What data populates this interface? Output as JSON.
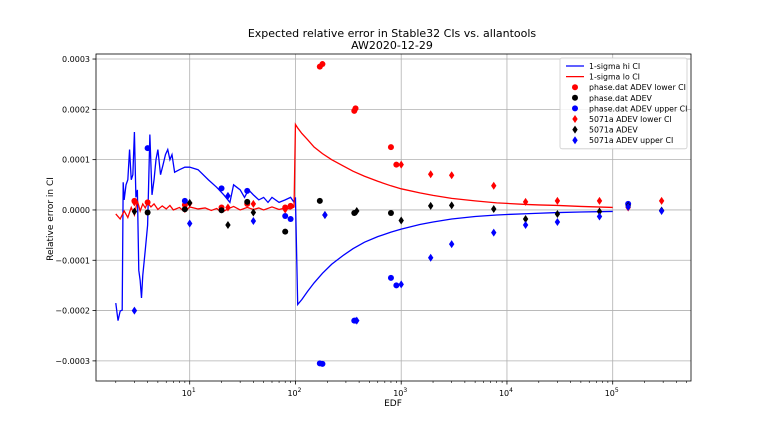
{
  "chart_data": {
    "type": "scatter",
    "title": "Expected relative error in Stable32 CIs vs. allantools",
    "subtitle": "AW2020-12-29",
    "xlabel": "EDF",
    "ylabel": "Relative error in CI",
    "xscale": "log",
    "xlim": [
      1.3,
      550000
    ],
    "ylim": [
      -0.00034,
      0.00031
    ],
    "grid": true,
    "legend_position": "top-right",
    "x_ticks": [
      {
        "value": 10,
        "base": "10",
        "exp": "1"
      },
      {
        "value": 100,
        "base": "10",
        "exp": "2"
      },
      {
        "value": 1000,
        "base": "10",
        "exp": "3"
      },
      {
        "value": 10000,
        "base": "10",
        "exp": "4"
      },
      {
        "value": 100000,
        "base": "10",
        "exp": "5"
      }
    ],
    "y_ticks": [
      {
        "value": 0.0003,
        "label": "0.0003"
      },
      {
        "value": 0.0002,
        "label": "0.0002"
      },
      {
        "value": 0.0001,
        "label": "0.0001"
      },
      {
        "value": 0.0,
        "label": "0.0000"
      },
      {
        "value": -0.0001,
        "label": "−0.0001"
      },
      {
        "value": -0.0002,
        "label": "−0.0002"
      },
      {
        "value": -0.0003,
        "label": "−0.0003"
      }
    ],
    "series": [
      {
        "name": "1-sigma hi CI",
        "kind": "line",
        "color": "#0000ff",
        "x": [
          2.0,
          2.1,
          2.2,
          2.3,
          2.35,
          2.4,
          2.5,
          2.6,
          2.7,
          2.8,
          2.9,
          3.0,
          3.1,
          3.2,
          3.3,
          3.4,
          3.5,
          3.6,
          3.8,
          4.0,
          4.2,
          4.4,
          4.6,
          4.8,
          5.0,
          5.3,
          5.6,
          5.9,
          6.2,
          6.5,
          6.8,
          7.2,
          8,
          9,
          10,
          12,
          15,
          18,
          21,
          24,
          26,
          30,
          33,
          36,
          40,
          45,
          50,
          55,
          60,
          70,
          80,
          90,
          97,
          100,
          105,
          115,
          130,
          150,
          180,
          220,
          280,
          350,
          450,
          600,
          800,
          1000,
          1500,
          2000,
          3000,
          5000,
          8000,
          10000,
          15000,
          20000,
          30000,
          50000,
          100000
        ],
        "y": [
          -0.000185,
          -0.00022,
          -0.000201,
          -0.000199,
          5.5e-05,
          2e-05,
          5e-05,
          6e-05,
          0.00012,
          6e-05,
          7e-05,
          0.000155,
          2.5e-05,
          4e-05,
          -0.00012,
          -0.00014,
          -0.000175,
          -0.00013,
          -8e-05,
          -3e-05,
          0.00015,
          3e-05,
          6e-05,
          0.0001,
          0.00012,
          7e-05,
          9e-05,
          0.00011,
          0.00012,
          0.0001,
          0.00011,
          7.5e-05,
          8e-05,
          8.5e-05,
          8.5e-05,
          8e-05,
          6e-05,
          4.5e-05,
          3e-05,
          1.5e-05,
          5e-05,
          4e-05,
          2.5e-05,
          4e-05,
          3e-05,
          2e-05,
          2.5e-05,
          1.5e-05,
          2.5e-05,
          1.5e-05,
          2e-05,
          2.5e-05,
          1.5e-05,
          2.5e-05,
          -0.000188,
          -0.000178,
          -0.000162,
          -0.000145,
          -0.000126,
          -0.000108,
          -9.1e-05,
          -7.7e-05,
          -6.4e-05,
          -5.3e-05,
          -4.4e-05,
          -3.8e-05,
          -2.9e-05,
          -2.4e-05,
          -1.8e-05,
          -1.3e-05,
          -1e-05,
          -9e-06,
          -7.5e-06,
          -6.5e-06,
          -5.2e-06,
          -4e-06,
          -3e-06
        ]
      },
      {
        "name": "1-sigma lo CI",
        "kind": "line",
        "color": "#ff0000",
        "x": [
          2.0,
          2.2,
          2.4,
          2.6,
          2.8,
          3.0,
          3.2,
          3.4,
          3.6,
          3.8,
          4.0,
          4.3,
          4.6,
          5.0,
          5.5,
          6.0,
          6.5,
          7,
          8,
          9,
          10,
          12,
          14,
          16,
          18,
          20,
          23,
          26,
          30,
          35,
          40,
          45,
          50,
          60,
          70,
          80,
          90,
          97,
          100,
          105,
          115,
          130,
          150,
          180,
          220,
          280,
          350,
          450,
          600,
          800,
          1000,
          1500,
          2000,
          3000,
          5000,
          8000,
          10000,
          15000,
          20000,
          30000,
          50000,
          100000
        ],
        "y": [
          -8e-06,
          -1.8e-05,
          -2e-06,
          -1.5e-05,
          5e-06,
          -1e-05,
          1.8e-05,
          -2e-06,
          1.2e-05,
          4e-06,
          1.4e-05,
          6e-06,
          1.2e-05,
          1e-06,
          8e-06,
          2e-06,
          9e-06,
          0.0,
          5e-06,
          -4e-06,
          6e-06,
          2e-06,
          4e-06,
          -1e-06,
          3e-06,
          -5e-06,
          2e-06,
          7e-06,
          0.0,
          5e-06,
          1e-06,
          4e-06,
          0.0,
          6e-06,
          1e-06,
          4e-06,
          2e-06,
          6e-06,
          0.00017,
          0.000163,
          0.000152,
          0.00014,
          0.000125,
          0.000112,
          0.0001,
          8.8e-05,
          7.7e-05,
          6.7e-05,
          5.7e-05,
          4.8e-05,
          4.2e-05,
          3.4e-05,
          2.9e-05,
          2.3e-05,
          1.8e-05,
          1.4e-05,
          1.3e-05,
          1.1e-05,
          1e-05,
          9e-06,
          7e-06,
          5e-06
        ]
      },
      {
        "name": "phase.dat ADEV lower CI",
        "kind": "marker",
        "marker": "circle",
        "color": "#ff0000",
        "x": [
          3,
          4,
          9,
          20,
          35,
          80,
          90,
          170,
          180,
          360,
          370,
          800,
          900
        ],
        "y": [
          1.8e-05,
          1.5e-05,
          1e-05,
          5e-06,
          1.2e-05,
          5e-06,
          8e-06,
          0.000285,
          0.00029,
          0.000197,
          0.000202,
          0.000125,
          9e-05
        ]
      },
      {
        "name": "phase.dat ADEV",
        "kind": "marker",
        "marker": "circle",
        "color": "#000000",
        "x": [
          4,
          9,
          20,
          35,
          80,
          170,
          360,
          800
        ],
        "y": [
          -5e-06,
          1.5e-06,
          -5e-07,
          1.6e-05,
          -4.3e-05,
          1.8e-05,
          -6e-06,
          -6e-06
        ]
      },
      {
        "name": "phase.dat ADEV upper CI",
        "kind": "marker",
        "marker": "circle",
        "color": "#0000ff",
        "x": [
          4,
          9,
          20,
          35,
          80,
          90,
          170,
          180,
          360,
          370,
          800,
          900,
          140000
        ],
        "y": [
          0.000123,
          1.8e-05,
          4.3e-05,
          3.8e-05,
          -1.2e-05,
          -1.8e-05,
          -0.000305,
          -0.000306,
          -0.00022,
          -0.00022,
          -0.000135,
          -0.00015,
          1.2e-05
        ]
      },
      {
        "name": "5071a ADEV lower CI",
        "kind": "marker",
        "marker": "diamond",
        "color": "#ff0000",
        "x": [
          3,
          10,
          23,
          40,
          80,
          1000,
          1900,
          3000,
          7500,
          15000,
          30000,
          75000,
          140000,
          290000
        ],
        "y": [
          1.5e-05,
          1.3e-05,
          5e-06,
          1.2e-05,
          1e-06,
          9e-05,
          7.1e-05,
          6.9e-05,
          4.8e-05,
          1.6e-05,
          1.8e-05,
          1.8e-05,
          5e-06,
          1.8e-05
        ]
      },
      {
        "name": "5071a ADEV",
        "kind": "marker",
        "marker": "diamond",
        "color": "#000000",
        "x": [
          3,
          10,
          23,
          40,
          190,
          380,
          1000,
          1900,
          3000,
          7500,
          15000,
          30000,
          75000,
          140000,
          290000
        ],
        "y": [
          -3e-06,
          1.4e-05,
          -3e-05,
          -5e-06,
          -1e-05,
          -2e-06,
          -2.1e-05,
          8e-06,
          9e-06,
          2e-06,
          -1.8e-05,
          -8e-06,
          -3e-06,
          8e-06,
          -1e-06
        ]
      },
      {
        "name": "5071a ADEV upper CI",
        "kind": "marker",
        "marker": "diamond",
        "color": "#0000ff",
        "x": [
          3,
          10,
          23,
          40,
          190,
          380,
          1000,
          1900,
          3000,
          7500,
          15000,
          30000,
          75000,
          140000,
          290000
        ],
        "y": [
          -0.0002,
          -2.7e-05,
          2.8e-05,
          -2.2e-05,
          -1e-05,
          -0.00022,
          -0.000148,
          -9.5e-05,
          -6.8e-05,
          -4.5e-05,
          -3e-05,
          -2.4e-05,
          -1.3e-05,
          6e-06,
          -2e-06
        ]
      }
    ]
  }
}
